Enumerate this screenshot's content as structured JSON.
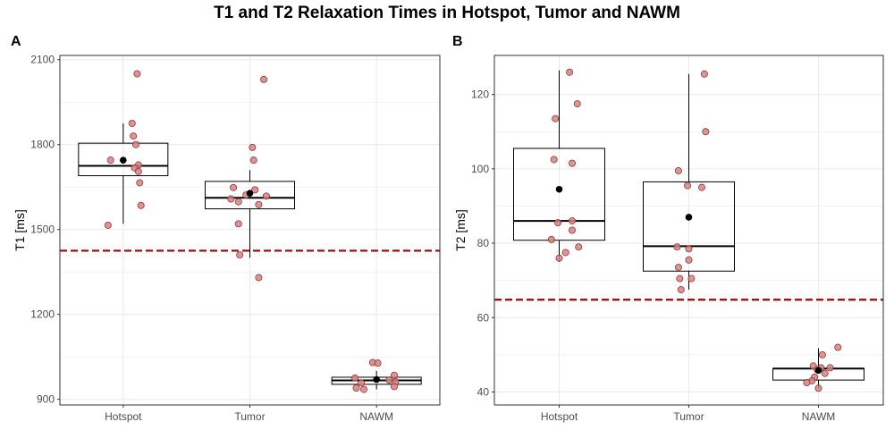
{
  "title": "T1 and T2 Relaxation Times in Hotspot, Tumor and NAWM",
  "colors": {
    "point_fill": "#d98080",
    "point_stroke": "#8a3a3a",
    "reference_line": "#a50000",
    "grid": "#ebebeb",
    "panel_border": "#333333"
  },
  "chart_data": [
    {
      "panel": "A",
      "type": "box",
      "title": "",
      "xlabel": "",
      "ylabel": "T1 [ms]",
      "categories": [
        "Hotspot",
        "Tumor",
        "NAWM"
      ],
      "ylim": [
        880,
        2115
      ],
      "yticks": [
        900,
        1200,
        1500,
        1800,
        2100
      ],
      "reference_line": 1425,
      "boxes": [
        {
          "whisker_low": 1520,
          "q1": 1690,
          "median": 1725,
          "q3": 1805,
          "whisker_high": 1875,
          "mean": 1745
        },
        {
          "whisker_low": 1400,
          "q1": 1573,
          "median": 1612,
          "q3": 1670,
          "whisker_high": 1710,
          "mean": 1628
        },
        {
          "whisker_low": 935,
          "q1": 953,
          "median": 967,
          "q3": 978,
          "whisker_high": 1000,
          "mean": 970
        }
      ],
      "points": [
        {
          "category": "Hotspot",
          "jitter": 0.11,
          "value": 2050
        },
        {
          "category": "Hotspot",
          "jitter": 0.07,
          "value": 1875
        },
        {
          "category": "Hotspot",
          "jitter": 0.08,
          "value": 1830
        },
        {
          "category": "Hotspot",
          "jitter": 0.1,
          "value": 1800
        },
        {
          "category": "Hotspot",
          "jitter": -0.1,
          "value": 1745
        },
        {
          "category": "Hotspot",
          "jitter": 0.12,
          "value": 1728
        },
        {
          "category": "Hotspot",
          "jitter": 0.09,
          "value": 1718
        },
        {
          "category": "Hotspot",
          "jitter": 0.12,
          "value": 1705
        },
        {
          "category": "Hotspot",
          "jitter": 0.13,
          "value": 1665
        },
        {
          "category": "Hotspot",
          "jitter": 0.14,
          "value": 1585
        },
        {
          "category": "Hotspot",
          "jitter": -0.12,
          "value": 1515
        },
        {
          "category": "Tumor",
          "jitter": 0.11,
          "value": 2030
        },
        {
          "category": "Tumor",
          "jitter": 0.02,
          "value": 1790
        },
        {
          "category": "Tumor",
          "jitter": 0.03,
          "value": 1745
        },
        {
          "category": "Tumor",
          "jitter": -0.13,
          "value": 1648
        },
        {
          "category": "Tumor",
          "jitter": 0.04,
          "value": 1640
        },
        {
          "category": "Tumor",
          "jitter": -0.03,
          "value": 1622
        },
        {
          "category": "Tumor",
          "jitter": 0.13,
          "value": 1618
        },
        {
          "category": "Tumor",
          "jitter": -0.15,
          "value": 1608
        },
        {
          "category": "Tumor",
          "jitter": -0.09,
          "value": 1598
        },
        {
          "category": "Tumor",
          "jitter": 0.07,
          "value": 1588
        },
        {
          "category": "Tumor",
          "jitter": -0.09,
          "value": 1520
        },
        {
          "category": "Tumor",
          "jitter": -0.08,
          "value": 1410
        },
        {
          "category": "Tumor",
          "jitter": 0.07,
          "value": 1330
        },
        {
          "category": "NAWM",
          "jitter": -0.03,
          "value": 1030
        },
        {
          "category": "NAWM",
          "jitter": 0.01,
          "value": 1028
        },
        {
          "category": "NAWM",
          "jitter": 0.14,
          "value": 985
        },
        {
          "category": "NAWM",
          "jitter": -0.17,
          "value": 975
        },
        {
          "category": "NAWM",
          "jitter": 0.1,
          "value": 968
        },
        {
          "category": "NAWM",
          "jitter": 0.15,
          "value": 962
        },
        {
          "category": "NAWM",
          "jitter": -0.12,
          "value": 958
        },
        {
          "category": "NAWM",
          "jitter": 0.14,
          "value": 945
        },
        {
          "category": "NAWM",
          "jitter": -0.16,
          "value": 940
        },
        {
          "category": "NAWM",
          "jitter": -0.1,
          "value": 935
        }
      ]
    },
    {
      "panel": "B",
      "type": "box",
      "title": "",
      "xlabel": "",
      "ylabel": "T2 [ms]",
      "categories": [
        "Hotspot",
        "Tumor",
        "NAWM"
      ],
      "ylim": [
        36.5,
        130.5
      ],
      "yticks": [
        40,
        60,
        80,
        100,
        120
      ],
      "reference_line": 64.8,
      "boxes": [
        {
          "whisker_low": 75,
          "q1": 80.8,
          "median": 86,
          "q3": 105.5,
          "whisker_high": 126.5,
          "mean": 94.5
        },
        {
          "whisker_low": 67.5,
          "q1": 72.5,
          "median": 79.2,
          "q3": 96.5,
          "whisker_high": 125.5,
          "mean": 87
        },
        {
          "whisker_low": 41,
          "q1": 43.2,
          "median": 46.3,
          "q3": 46.3,
          "whisker_high": 51.8,
          "mean": 45.8
        }
      ],
      "points": [
        {
          "category": "Hotspot",
          "jitter": 0.08,
          "value": 126
        },
        {
          "category": "Hotspot",
          "jitter": 0.14,
          "value": 117.5
        },
        {
          "category": "Hotspot",
          "jitter": -0.03,
          "value": 113.5
        },
        {
          "category": "Hotspot",
          "jitter": -0.04,
          "value": 102.5
        },
        {
          "category": "Hotspot",
          "jitter": 0.1,
          "value": 101.5
        },
        {
          "category": "Hotspot",
          "jitter": 0.1,
          "value": 86
        },
        {
          "category": "Hotspot",
          "jitter": -0.01,
          "value": 85.5
        },
        {
          "category": "Hotspot",
          "jitter": 0.1,
          "value": 83.5
        },
        {
          "category": "Hotspot",
          "jitter": -0.06,
          "value": 81
        },
        {
          "category": "Hotspot",
          "jitter": 0.15,
          "value": 79
        },
        {
          "category": "Hotspot",
          "jitter": 0.05,
          "value": 77.5
        },
        {
          "category": "Hotspot",
          "jitter": 0.0,
          "value": 76
        },
        {
          "category": "Tumor",
          "jitter": 0.12,
          "value": 125.5
        },
        {
          "category": "Tumor",
          "jitter": 0.13,
          "value": 110
        },
        {
          "category": "Tumor",
          "jitter": -0.08,
          "value": 99.5
        },
        {
          "category": "Tumor",
          "jitter": -0.01,
          "value": 95.5
        },
        {
          "category": "Tumor",
          "jitter": 0.1,
          "value": 95
        },
        {
          "category": "Tumor",
          "jitter": -0.09,
          "value": 79
        },
        {
          "category": "Tumor",
          "jitter": 0.0,
          "value": 78.5
        },
        {
          "category": "Tumor",
          "jitter": 0.0,
          "value": 75.5
        },
        {
          "category": "Tumor",
          "jitter": -0.08,
          "value": 73.5
        },
        {
          "category": "Tumor",
          "jitter": 0.02,
          "value": 70.5
        },
        {
          "category": "Tumor",
          "jitter": -0.07,
          "value": 70.5
        },
        {
          "category": "Tumor",
          "jitter": -0.06,
          "value": 67.5
        },
        {
          "category": "NAWM",
          "jitter": 0.15,
          "value": 52
        },
        {
          "category": "NAWM",
          "jitter": 0.03,
          "value": 50
        },
        {
          "category": "NAWM",
          "jitter": -0.04,
          "value": 47
        },
        {
          "category": "NAWM",
          "jitter": 0.09,
          "value": 46.5
        },
        {
          "category": "NAWM",
          "jitter": 0.02,
          "value": 46.5
        },
        {
          "category": "NAWM",
          "jitter": -0.01,
          "value": 46
        },
        {
          "category": "NAWM",
          "jitter": 0.05,
          "value": 45
        },
        {
          "category": "NAWM",
          "jitter": -0.03,
          "value": 44
        },
        {
          "category": "NAWM",
          "jitter": -0.05,
          "value": 43
        },
        {
          "category": "NAWM",
          "jitter": -0.09,
          "value": 42.5
        },
        {
          "category": "NAWM",
          "jitter": 0.0,
          "value": 41
        }
      ]
    }
  ]
}
